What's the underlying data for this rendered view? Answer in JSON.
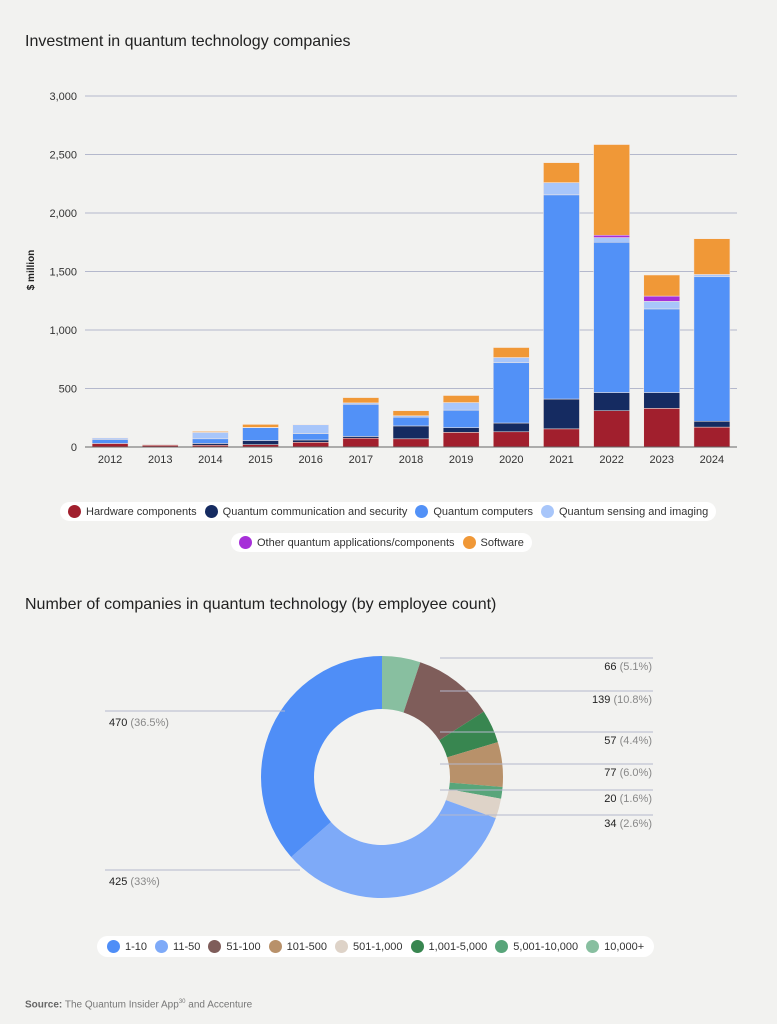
{
  "chart_data": [
    {
      "type": "bar",
      "stacked": true,
      "title": "Investment in quantum technology companies",
      "ylabel": "$ million",
      "xlabel": "",
      "ylim": [
        0,
        3000
      ],
      "yticks": [
        "0",
        "500",
        "1,000",
        "1,500",
        "2,000",
        "2,500",
        "3,000"
      ],
      "ytick_values": [
        0,
        500,
        1000,
        1500,
        2000,
        2500,
        3000
      ],
      "grid": true,
      "legend_position": "bottom",
      "categories": [
        "2012",
        "2013",
        "2014",
        "2015",
        "2016",
        "2017",
        "2018",
        "2019",
        "2020",
        "2021",
        "2022",
        "2023",
        "2024"
      ],
      "series": [
        {
          "name": "Hardware components",
          "color": "#a11f2d",
          "values": [
            30,
            15,
            15,
            20,
            40,
            75,
            70,
            125,
            130,
            155,
            310,
            330,
            170
          ]
        },
        {
          "name": "Quantum communication and security",
          "color": "#152b61",
          "values": [
            0,
            5,
            15,
            35,
            20,
            15,
            110,
            40,
            75,
            255,
            155,
            135,
            50
          ]
        },
        {
          "name": "Quantum computers",
          "color": "#5291f7",
          "values": [
            35,
            0,
            40,
            110,
            55,
            275,
            75,
            150,
            515,
            1745,
            1285,
            715,
            1235
          ]
        },
        {
          "name": "Quantum sensing and imaging",
          "color": "#a8c6fa",
          "values": [
            12,
            0,
            55,
            3,
            75,
            12,
            12,
            65,
            45,
            105,
            40,
            65,
            20
          ]
        },
        {
          "name": "Other quantum applications/components",
          "color": "#a62fd8",
          "values": [
            0,
            0,
            0,
            0,
            0,
            0,
            0,
            0,
            0,
            0,
            20,
            45,
            0
          ]
        },
        {
          "name": "Software",
          "color": "#f09837",
          "values": [
            0,
            0,
            8,
            25,
            0,
            45,
            43,
            60,
            85,
            170,
            775,
            180,
            305
          ]
        }
      ]
    },
    {
      "type": "pie",
      "donut": true,
      "title": "Number of companies in quantum technology (by employee count)",
      "legend_position": "bottom",
      "legend": [
        {
          "name": "1-10",
          "color": "#4f8ef7"
        },
        {
          "name": "11-50",
          "color": "#7eaaf8"
        },
        {
          "name": "51-100",
          "color": "#7f5d5a"
        },
        {
          "name": "101-500",
          "color": "#b8916a"
        },
        {
          "name": "501-1,000",
          "color": "#ded3c8"
        },
        {
          "name": "1,001-5,000",
          "color": "#388650"
        },
        {
          "name": "5,001-10,000",
          "color": "#58a57a"
        },
        {
          "name": "10,000+",
          "color": "#88bfa0"
        }
      ],
      "slices": [
        {
          "name": "10,000+",
          "value": 66,
          "label": "66",
          "pct": "(5.1%)",
          "color": "#88bfa0",
          "side": "right"
        },
        {
          "name": "51-100",
          "value": 139,
          "label": "139",
          "pct": "(10.8%)",
          "color": "#7f5d5a",
          "side": "right"
        },
        {
          "name": "1,001-5,000",
          "value": 57,
          "label": "57",
          "pct": "(4.4%)",
          "color": "#388650",
          "side": "right"
        },
        {
          "name": "101-500",
          "value": 77,
          "label": "77",
          "pct": "(6.0%)",
          "color": "#b8916a",
          "side": "right"
        },
        {
          "name": "5,001-10,000",
          "value": 20,
          "label": "20",
          "pct": "(1.6%)",
          "color": "#58a57a",
          "side": "right"
        },
        {
          "name": "501-1,000",
          "value": 34,
          "label": "34",
          "pct": "(2.6%)",
          "color": "#ded3c8",
          "side": "right"
        },
        {
          "name": "11-50",
          "value": 425,
          "label": "425",
          "pct": "(33%)",
          "color": "#7eaaf8",
          "side": "left"
        },
        {
          "name": "1-10",
          "value": 470,
          "label": "470",
          "pct": "(36.5%)",
          "color": "#4f8ef7",
          "side": "left"
        }
      ]
    }
  ],
  "source": {
    "label": "Source:",
    "text": "The Quantum Insider App",
    "sup": "30",
    "suffix": " and Accenture"
  }
}
